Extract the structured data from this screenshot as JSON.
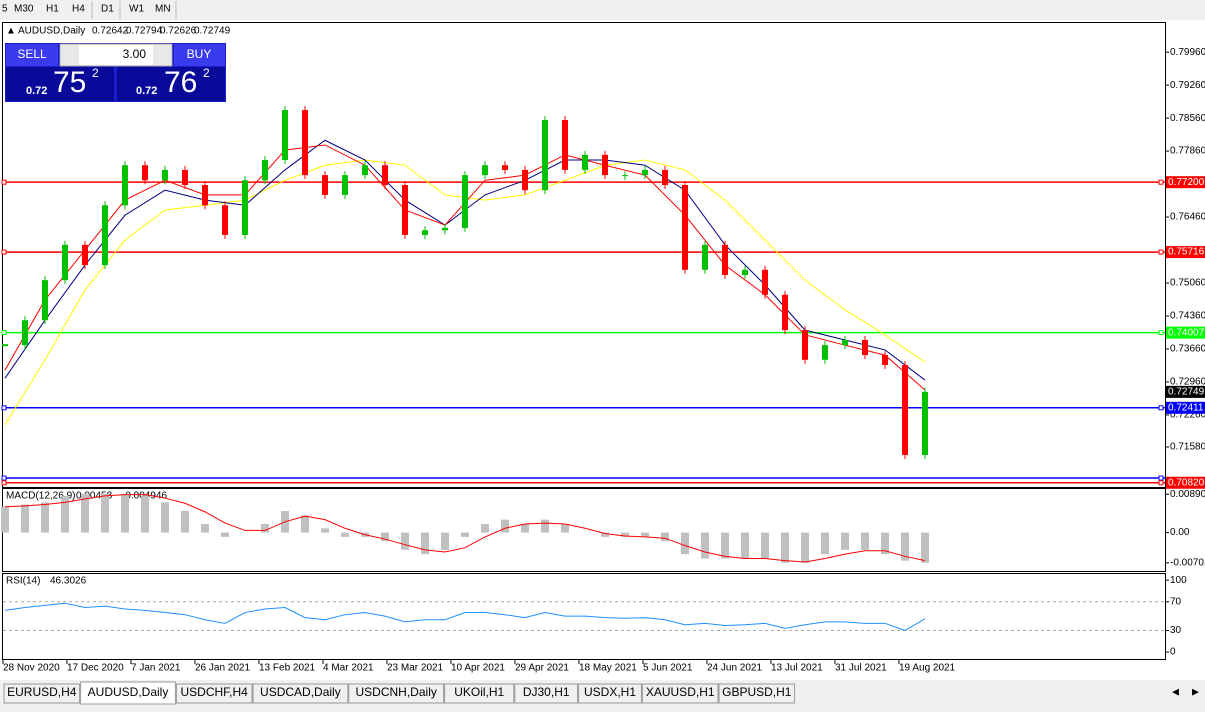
{
  "toolbar": {
    "timeframes": [
      "5",
      "M30",
      "H1",
      "H4",
      "D1",
      "W1",
      "MN"
    ]
  },
  "trade_panel": {
    "sell": "SELL",
    "buy": "BUY",
    "volume": "3.00",
    "bid": {
      "big": "0.72",
      "pips": "75",
      "point": "2"
    },
    "ask": {
      "big": "0.72",
      "pips": "76",
      "point": "2"
    }
  },
  "chart": {
    "symbol": "AUDUSD,Daily",
    "ohlc": [
      0.72642,
      0.72794,
      0.72626,
      0.72749
    ],
    "ylim": [
      0.7073,
      0.806
    ],
    "yticks": [
      {
        "value": 0.7996,
        "label": "0.79960"
      },
      {
        "value": 0.7926,
        "label": "0.79260"
      },
      {
        "value": 0.7856,
        "label": "0.78560"
      },
      {
        "value": 0.7786,
        "label": "0.77860"
      },
      {
        "value": 0.7646,
        "label": "0.76460"
      },
      {
        "value": 0.7506,
        "label": "0.75060"
      },
      {
        "value": 0.7436,
        "label": "0.74360"
      },
      {
        "value": 0.7366,
        "label": "0.73660"
      },
      {
        "value": 0.7296,
        "label": "0.72960"
      },
      {
        "value": 0.7226,
        "label": "0.72260"
      },
      {
        "value": 0.7158,
        "label": "0.71580"
      }
    ],
    "current_price": 0.72749,
    "hlines": [
      {
        "value": 0.772,
        "label": "0.77200",
        "color": "#ff0000"
      },
      {
        "value": 0.75716,
        "label": "0.75716",
        "color": "#ff0000"
      },
      {
        "value": 0.74007,
        "label": "0.74007",
        "color": "#00ff00"
      },
      {
        "value": 0.72411,
        "label": "0.72411",
        "color": "#0000ff"
      },
      {
        "value": 0.7092,
        "color": "#0000ff"
      },
      {
        "value": 0.7082,
        "label": "0.70820",
        "color": "#ff0000"
      }
    ],
    "closes": [
      0.7374,
      0.7427,
      0.7512,
      0.7587,
      0.7544,
      0.7671,
      0.7756,
      0.7724,
      0.7746,
      0.7714,
      0.7671,
      0.7608,
      0.7724,
      0.7767,
      0.7873,
      0.7735,
      0.7693,
      0.7735,
      0.7756,
      0.7714,
      0.7608,
      0.7618,
      0.7623,
      0.7735,
      0.7756,
      0.7746,
      0.7703,
      0.7852,
      0.7746,
      0.7778,
      0.7735,
      0.7735,
      0.7746,
      0.7714,
      0.7534,
      0.7587,
      0.7523,
      0.7534,
      0.7481,
      0.7406,
      0.7343,
      0.7374,
      0.7385,
      0.7353,
      0.7332,
      0.7141,
      0.7275
    ],
    "up_color": "#00c000",
    "down_color": "#ff0000",
    "ma": [
      {
        "color": "#ffff00",
        "values": [
          0.7205,
          0.7343,
          0.7491,
          0.7597,
          0.7661,
          0.7671,
          0.7682,
          0.7724,
          0.7756,
          0.7767,
          0.7756,
          0.7693,
          0.7682,
          0.7693,
          0.7724,
          0.7756,
          0.7767,
          0.7746,
          0.7682,
          0.7597,
          0.7512,
          0.7449,
          0.7396,
          0.7338
        ]
      },
      {
        "color": "#000080",
        "values": [
          0.7304,
          0.7427,
          0.7544,
          0.765,
          0.7703,
          0.7682,
          0.7671,
          0.7746,
          0.7809,
          0.7767,
          0.7682,
          0.7629,
          0.7693,
          0.7724,
          0.7767,
          0.7767,
          0.7756,
          0.7703,
          0.7587,
          0.7502,
          0.7406,
          0.7385,
          0.7364,
          0.73
        ]
      },
      {
        "color": "#ff0000",
        "values": [
          0.7321,
          0.747,
          0.7576,
          0.7682,
          0.7724,
          0.7693,
          0.7693,
          0.7788,
          0.7799,
          0.7756,
          0.7661,
          0.7629,
          0.7724,
          0.7735,
          0.7778,
          0.7756,
          0.7735,
          0.765,
          0.7544,
          0.7481,
          0.7396,
          0.7374,
          0.7353,
          0.7279
        ]
      }
    ],
    "dates": [
      "28 Nov 2020",
      "17 Dec 2020",
      "7 Jan 2021",
      "26 Jan 2021",
      "13 Feb 2021",
      "4 Mar 2021",
      "23 Mar 2021",
      "10 Apr 2021",
      "29 Apr 2021",
      "18 May 2021",
      "5 Jun 2021",
      "24 Jun 2021",
      "13 Jul 2021",
      "31 Jul 2021",
      "19 Aug 2021"
    ]
  },
  "macd": {
    "title": "MACD(12,26,9)",
    "main": 0.00458,
    "signal_value": -0.004946,
    "ylim": [
      -0.0089,
      0.0101
    ],
    "yticks": [
      0.008904,
      {
        "value": 0,
        "label": "0.00"
      },
      -0.00701
    ],
    "histogram": [
      0.006,
      0.0065,
      0.007,
      0.0085,
      0.009,
      0.009,
      0.009,
      0.0085,
      0.007,
      0.005,
      0.002,
      -0.001,
      0,
      0.002,
      0.005,
      0.004,
      0.001,
      -0.001,
      -0.001,
      -0.002,
      -0.004,
      -0.005,
      -0.004,
      -0.001,
      0.002,
      0.003,
      0.002,
      0.003,
      0.002,
      0,
      -0.001,
      -0.001,
      -0.001,
      -0.002,
      -0.005,
      -0.006,
      -0.006,
      -0.006,
      -0.006,
      -0.007,
      -0.007,
      -0.005,
      -0.004,
      -0.004,
      -0.005,
      -0.0065,
      -0.007
    ],
    "signal": [
      0.006,
      0.0062,
      0.0065,
      0.007,
      0.0078,
      0.0085,
      0.0088,
      0.0088,
      0.008,
      0.0068,
      0.0048,
      0.0022,
      0.0005,
      0.0005,
      0.0025,
      0.0038,
      0.003,
      0.001,
      -0.0005,
      -0.0015,
      -0.0028,
      -0.004,
      -0.0045,
      -0.0035,
      -0.001,
      0.001,
      0.002,
      0.0022,
      0.002,
      0.001,
      -0.0002,
      -0.0008,
      -0.001,
      -0.0013,
      -0.003,
      -0.0045,
      -0.0055,
      -0.006,
      -0.006,
      -0.0065,
      -0.0068,
      -0.006,
      -0.005,
      -0.0042,
      -0.0042,
      -0.0055,
      -0.0065
    ],
    "hist_color": "#c0c0c0",
    "signal_color": "#ff0000"
  },
  "rsi": {
    "title": "RSI(14)",
    "value": 46.3026,
    "ylim": [
      -11,
      110
    ],
    "yticks": [
      100,
      70,
      30,
      0
    ],
    "levels": [
      70,
      30
    ],
    "color": "#1e90ff",
    "values": [
      58,
      62,
      65,
      68,
      62,
      64,
      60,
      58,
      55,
      52,
      45,
      40,
      55,
      60,
      62,
      48,
      45,
      52,
      55,
      50,
      42,
      45,
      45,
      55,
      55,
      52,
      48,
      55,
      50,
      50,
      48,
      47,
      48,
      45,
      38,
      40,
      37,
      38,
      40,
      33,
      38,
      42,
      42,
      40,
      40,
      30,
      46.3026
    ]
  },
  "tabs": {
    "active": 1,
    "items": [
      "EURUSD,H4",
      "AUDUSD,Daily",
      "USDCHF,H4",
      "USDCAD,Daily",
      "USDCNH,Daily",
      "UKOil,H1",
      "DJ30,H1",
      "USDX,H1",
      "XAUUSD,H1",
      "GBPUSD,H1"
    ]
  }
}
